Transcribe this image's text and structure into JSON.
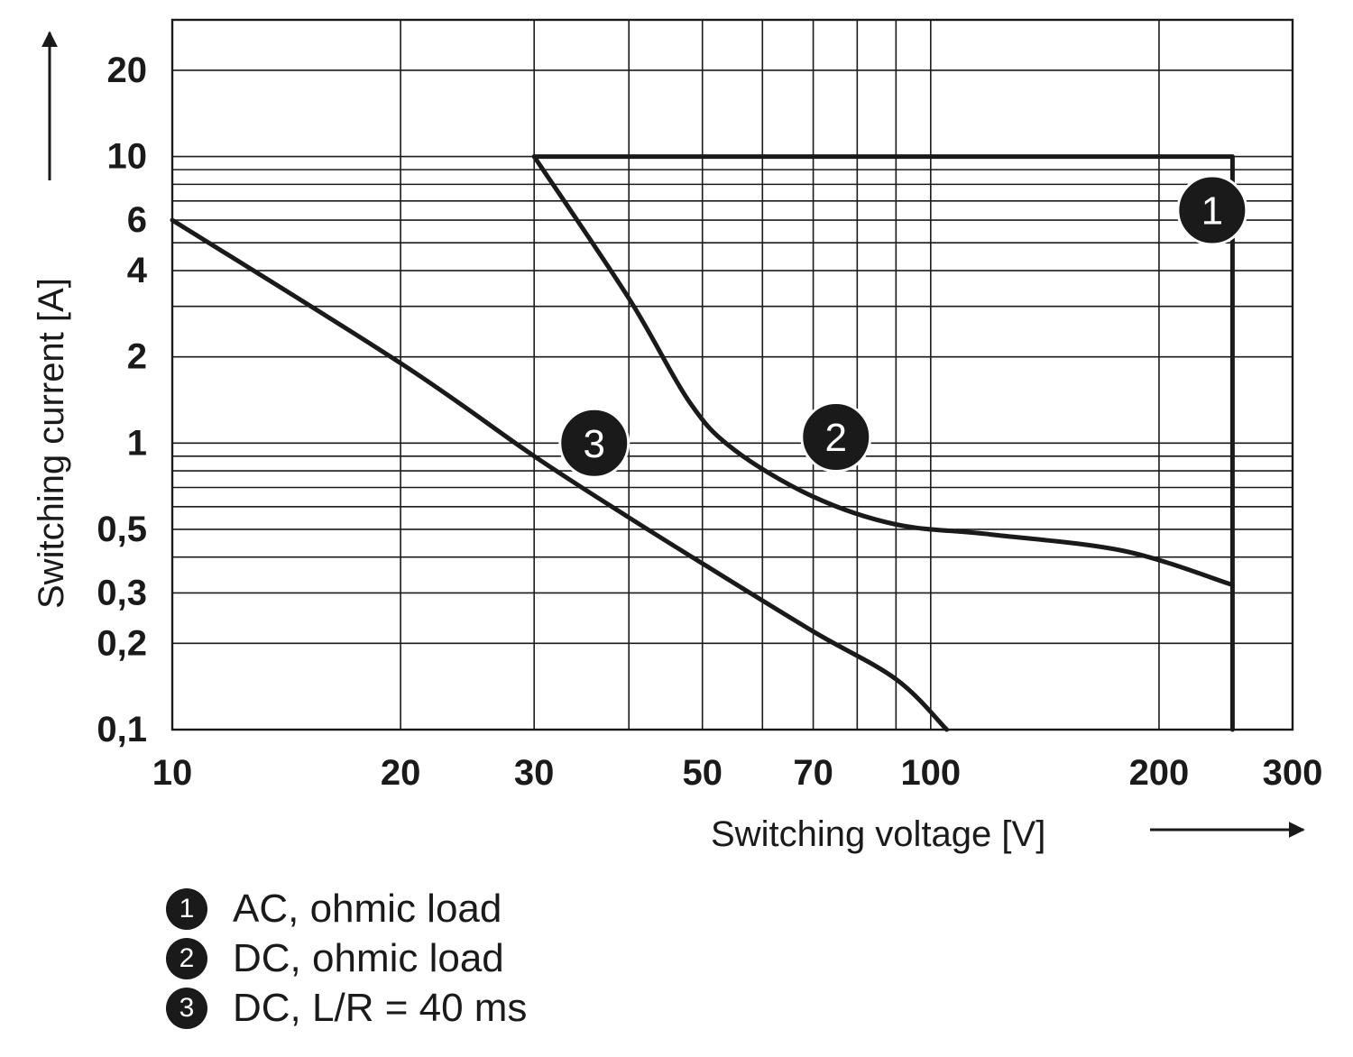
{
  "chart_data": {
    "type": "line",
    "title": "",
    "xlabel": "Switching voltage [V]",
    "ylabel": "Switching current [A]",
    "x_scale": "log",
    "y_scale": "log",
    "xlim": [
      10,
      300
    ],
    "ylim": [
      0.1,
      30
    ],
    "x_ticks": [
      {
        "value": 10,
        "label": "10"
      },
      {
        "value": 20,
        "label": "20"
      },
      {
        "value": 30,
        "label": "30"
      },
      {
        "value": 50,
        "label": "50"
      },
      {
        "value": 70,
        "label": "70"
      },
      {
        "value": 100,
        "label": "100"
      },
      {
        "value": 200,
        "label": "200"
      },
      {
        "value": 300,
        "label": "300"
      }
    ],
    "y_ticks": [
      {
        "value": 0.1,
        "label": "0,1"
      },
      {
        "value": 0.2,
        "label": "0,2"
      },
      {
        "value": 0.3,
        "label": "0,3"
      },
      {
        "value": 0.5,
        "label": "0,5"
      },
      {
        "value": 1,
        "label": "1"
      },
      {
        "value": 2,
        "label": "2"
      },
      {
        "value": 4,
        "label": "4"
      },
      {
        "value": 6,
        "label": "6"
      },
      {
        "value": 10,
        "label": "10"
      },
      {
        "value": 20,
        "label": "20"
      }
    ],
    "x_grid": [
      20,
      30,
      40,
      50,
      60,
      70,
      80,
      90,
      100,
      200
    ],
    "y_grid": [
      0.2,
      0.3,
      0.4,
      0.5,
      0.6,
      0.7,
      0.8,
      0.9,
      1,
      2,
      3,
      4,
      5,
      6,
      7,
      8,
      9,
      10,
      20
    ],
    "grid": true,
    "series": [
      {
        "name": "AC, ohmic load",
        "marker": "1",
        "x": [
          30,
          250,
          250
        ],
        "y": [
          10,
          10,
          0.1
        ],
        "marker_pos": [
          235,
          6.5
        ]
      },
      {
        "name": "DC, ohmic load",
        "marker": "2",
        "x": [
          30,
          40,
          48,
          55,
          70,
          90,
          120,
          180,
          250
        ],
        "y": [
          10,
          3.2,
          1.4,
          0.95,
          0.65,
          0.52,
          0.48,
          0.42,
          0.32
        ],
        "marker_pos": [
          75,
          1.05
        ]
      },
      {
        "name": "DC, L/R = 40 ms",
        "marker": "3",
        "x": [
          10,
          20,
          30,
          40,
          50,
          70,
          90,
          105
        ],
        "y": [
          6,
          1.9,
          0.9,
          0.55,
          0.38,
          0.22,
          0.15,
          0.1
        ],
        "marker_pos": [
          36,
          1.0
        ]
      }
    ],
    "legend_placement": "bottom-left"
  },
  "legend": [
    {
      "marker": "1",
      "label": "AC, ohmic load"
    },
    {
      "marker": "2",
      "label": "DC, ohmic load"
    },
    {
      "marker": "3",
      "label": "DC, L/R = 40 ms"
    }
  ]
}
